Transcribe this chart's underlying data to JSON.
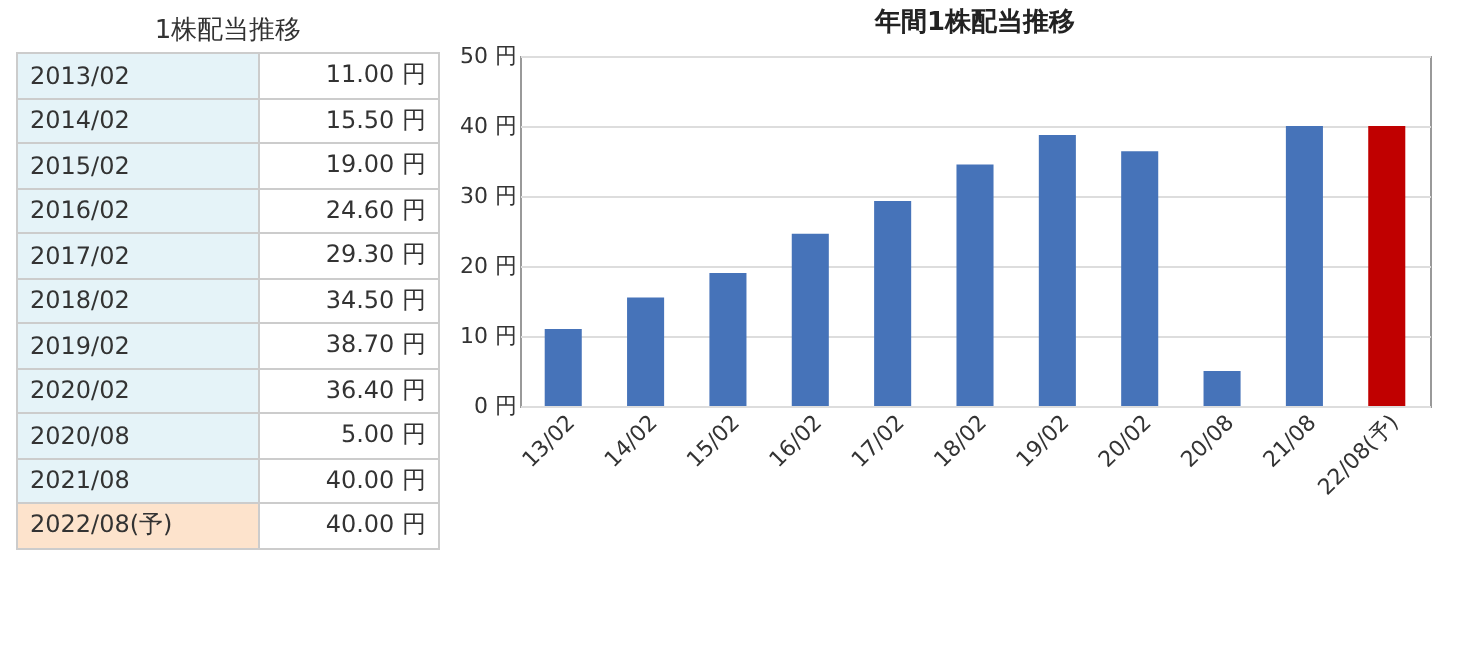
{
  "chart_data": [
    {
      "type": "other",
      "title": "1株配当推移",
      "categories": [
        "2013/02",
        "2014/02",
        "2015/02",
        "2016/02",
        "2017/02",
        "2018/02",
        "2019/02",
        "2020/02",
        "2020/08",
        "2021/08",
        "2022/08(予)"
      ],
      "value_labels": [
        "11.00 円",
        "15.50 円",
        "19.00 円",
        "24.60 円",
        "29.30 円",
        "34.50 円",
        "38.70 円",
        "36.40 円",
        "5.00 円",
        "40.00 円",
        "40.00 円"
      ],
      "colors": [
        "#e5f3f8",
        "#e5f3f8",
        "#e5f3f8",
        "#e5f3f8",
        "#e5f3f8",
        "#e5f3f8",
        "#e5f3f8",
        "#e5f3f8",
        "#e5f3f8",
        "#e5f3f8",
        "#fde3cc"
      ]
    },
    {
      "type": "bar",
      "title": "年間1株配当推移",
      "categories": [
        "13/02",
        "14/02",
        "15/02",
        "16/02",
        "17/02",
        "18/02",
        "19/02",
        "20/02",
        "20/08",
        "21/08",
        "22/08(予)"
      ],
      "values": [
        11,
        15.5,
        19,
        24.6,
        29.3,
        34.5,
        38.7,
        36.4,
        5,
        40,
        40
      ],
      "colors": [
        "#4673b9",
        "#4673b9",
        "#4673b9",
        "#4673b9",
        "#4673b9",
        "#4673b9",
        "#4673b9",
        "#4673b9",
        "#4673b9",
        "#4673b9",
        "#c00000"
      ],
      "ylim": [
        0,
        50
      ],
      "yticks": [
        {
          "value": 0,
          "label": "0 円"
        },
        {
          "value": 10,
          "label": "10 円"
        },
        {
          "value": 20,
          "label": "20 円"
        },
        {
          "value": 30,
          "label": "30 円"
        },
        {
          "value": 40,
          "label": "40 円"
        },
        {
          "value": 50,
          "label": "50 円"
        }
      ],
      "grid": "y"
    }
  ]
}
